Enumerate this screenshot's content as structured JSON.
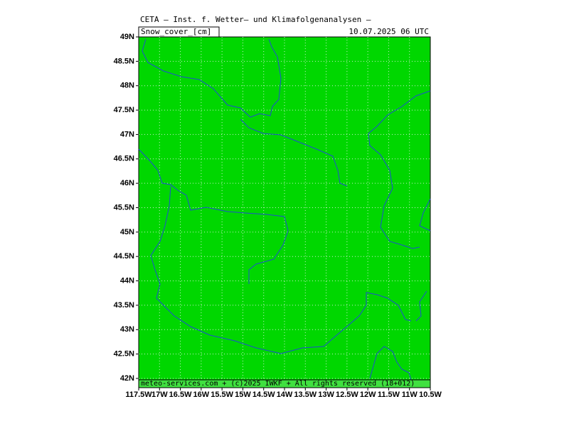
{
  "map": {
    "header": "CETA — Inst. f. Wetter— und Klimafolgenanalysen —",
    "variable": "Snow_cover_[cm]",
    "datetime": "10.07.2025 06 UTC",
    "footer": "meteo-services.com + (c)2025 IWKF + All rights reserved (18+012)",
    "lat_labels": [
      "49N",
      "48.5N",
      "48N",
      "47.5N",
      "47N",
      "46.5N",
      "46N",
      "45.5N",
      "45N",
      "44.5N",
      "44N",
      "43.5N",
      "43N",
      "42.5N",
      "42N"
    ],
    "lon_labels": [
      "117.5W",
      "17W",
      "16.5W",
      "16W",
      "15.5W",
      "15W",
      "14.5W",
      "14W",
      "13.5W",
      "13W",
      "12.5W",
      "12W",
      "11.5W",
      "11W",
      "10.5W"
    ]
  }
}
